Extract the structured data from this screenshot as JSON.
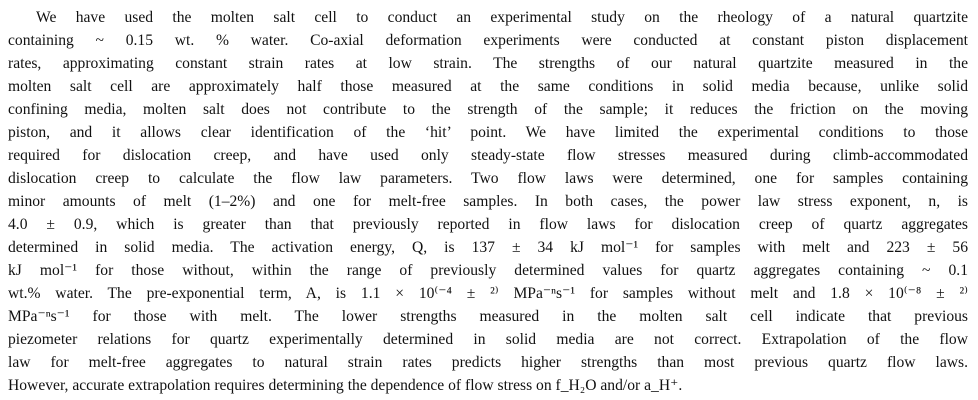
{
  "abstract": {
    "lines": [
      "We have used the molten salt cell to conduct an experimental study on the rheology of a natural quartzite",
      "containing ~ 0.15 wt. % water. Co-axial deformation experiments were conducted at constant piston displacement",
      "rates, approximating constant strain rates at low strain. The strengths of our natural quartzite measured in the",
      "molten salt cell are approximately half those measured at the same conditions in solid media because, unlike solid",
      "confining media, molten salt does not contribute to the strength of the sample; it reduces the friction on the moving",
      "piston, and it allows clear identification of the ‘hit’ point. We have limited the experimental conditions to those",
      "required for dislocation creep, and have used only steady-state flow stresses measured during climb-accommodated",
      "dislocation creep to calculate the flow law parameters. Two flow laws were determined, one for samples containing",
      "minor amounts of melt (1–2%) and one for melt-free samples. In both cases, the power law stress exponent, n, is",
      "4.0 ± 0.9, which is greater than that previously reported in flow laws for dislocation creep of quartz aggregates",
      "determined in solid media. The activation energy, Q, is 137 ± 34 kJ mol⁻¹ for samples with melt and 223 ± 56",
      "kJ mol⁻¹ for those without, within the range of previously determined values for quartz aggregates containing ~ 0.1",
      "wt.% water. The pre-exponential term, A, is 1.1 × 10⁽⁻⁴ ± ²⁾ MPa⁻ⁿs⁻¹ for samples without melt and 1.8 × 10⁽⁻⁸ ± ²⁾",
      "MPa⁻ⁿs⁻¹ for those with melt. The lower strengths measured in the molten salt cell indicate that previous",
      "piezometer relations for quartz experimentally determined in solid media are not correct. Extrapolation of the flow",
      "law for melt-free aggregates to natural strain rates predicts higher strengths than most previous quartz flow laws.",
      "However, accurate extrapolation requires determining the dependence of flow stress on f_H₂O and/or a_H⁺."
    ]
  }
}
